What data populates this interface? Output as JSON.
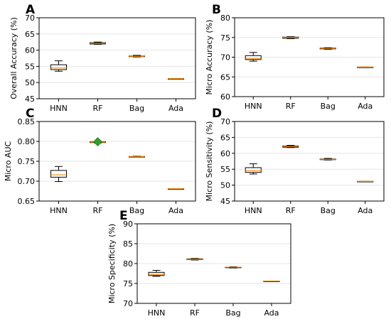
{
  "chart_data": [
    {
      "type": "box",
      "panel": "A",
      "ylabel": "Overall Accuracy (%)",
      "categories": [
        "HNN",
        "RF",
        "Bag",
        "Ada"
      ],
      "ylim": [
        45,
        70
      ],
      "yticks": [
        45,
        50,
        55,
        60,
        65,
        70
      ],
      "grid": "horizontal",
      "boxes": [
        {
          "whislo": 53.5,
          "q1": 54.0,
          "med": 54.5,
          "q3": 55.5,
          "whishi": 56.7
        },
        {
          "whislo": 61.8,
          "q1": 61.9,
          "med": 62.1,
          "q3": 62.3,
          "whishi": 62.5
        },
        {
          "whislo": 57.9,
          "q1": 58.0,
          "med": 58.1,
          "q3": 58.2,
          "whishi": 58.4
        },
        {
          "whislo": 51.2,
          "q1": 51.2,
          "med": 51.2,
          "q3": 51.2,
          "whishi": 51.2
        }
      ]
    },
    {
      "type": "box",
      "panel": "B",
      "ylabel": "Micro Accuracy (%)",
      "categories": [
        "HNN",
        "RF",
        "Bag",
        "Ada"
      ],
      "ylim": [
        60,
        80
      ],
      "yticks": [
        60,
        65,
        70,
        75,
        80
      ],
      "grid": "horizontal",
      "boxes": [
        {
          "whislo": 69.0,
          "q1": 69.4,
          "med": 69.7,
          "q3": 70.4,
          "whishi": 71.2
        },
        {
          "whislo": 74.7,
          "q1": 74.8,
          "med": 75.0,
          "q3": 75.1,
          "whishi": 75.2
        },
        {
          "whislo": 72.0,
          "q1": 72.1,
          "med": 72.2,
          "q3": 72.3,
          "whishi": 72.4
        },
        {
          "whislo": 67.5,
          "q1": 67.5,
          "med": 67.5,
          "q3": 67.5,
          "whishi": 67.5
        }
      ]
    },
    {
      "type": "box",
      "panel": "C",
      "ylabel": "Micro AUC",
      "categories": [
        "HNN",
        "RF",
        "Bag",
        "Ada"
      ],
      "ylim": [
        0.65,
        0.85
      ],
      "yticks": [
        0.65,
        0.7,
        0.75,
        0.8,
        0.85
      ],
      "grid": "horizontal",
      "boxes": [
        {
          "whislo": 0.699,
          "q1": 0.71,
          "med": 0.716,
          "q3": 0.727,
          "whishi": 0.737
        },
        {
          "whislo": 0.796,
          "q1": 0.797,
          "med": 0.798,
          "q3": 0.799,
          "whishi": 0.8,
          "outlier": 0.799
        },
        {
          "whislo": 0.761,
          "q1": 0.761,
          "med": 0.762,
          "q3": 0.762,
          "whishi": 0.763
        },
        {
          "whislo": 0.681,
          "q1": 0.681,
          "med": 0.681,
          "q3": 0.681,
          "whishi": 0.681
        }
      ]
    },
    {
      "type": "box",
      "panel": "D",
      "ylabel": "Micro Sensitivity (%)",
      "categories": [
        "HNN",
        "RF",
        "Bag",
        "Ada"
      ],
      "ylim": [
        45,
        70
      ],
      "yticks": [
        45,
        50,
        55,
        60,
        65,
        70
      ],
      "grid": "horizontal",
      "boxes": [
        {
          "whislo": 53.5,
          "q1": 54.0,
          "med": 54.5,
          "q3": 55.5,
          "whishi": 56.7
        },
        {
          "whislo": 61.8,
          "q1": 61.9,
          "med": 62.1,
          "q3": 62.3,
          "whishi": 62.5
        },
        {
          "whislo": 57.9,
          "q1": 58.0,
          "med": 58.1,
          "q3": 58.2,
          "whishi": 58.4
        },
        {
          "whislo": 51.2,
          "q1": 51.2,
          "med": 51.2,
          "q3": 51.2,
          "whishi": 51.2
        }
      ]
    },
    {
      "type": "box",
      "panel": "E",
      "ylabel": "Micro Specificity (%)",
      "categories": [
        "HNN",
        "RF",
        "Bag",
        "Ada"
      ],
      "ylim": [
        70,
        90
      ],
      "yticks": [
        70,
        75,
        80,
        85,
        90
      ],
      "grid": "horizontal",
      "boxes": [
        {
          "whislo": 76.8,
          "q1": 77.0,
          "med": 77.3,
          "q3": 77.8,
          "whishi": 78.3
        },
        {
          "whislo": 80.9,
          "q1": 81.0,
          "med": 81.1,
          "q3": 81.2,
          "whishi": 81.3
        },
        {
          "whislo": 78.9,
          "q1": 79.0,
          "med": 79.1,
          "q3": 79.1,
          "whishi": 79.2
        },
        {
          "whislo": 75.6,
          "q1": 75.6,
          "med": 75.6,
          "q3": 75.6,
          "whishi": 75.6
        }
      ]
    }
  ],
  "colors": {
    "median": "#ff8c00",
    "box_face": "#ffffff",
    "box_edge": "#000000",
    "grid": "#e6e6e6",
    "outlier": "#2ca02c"
  }
}
